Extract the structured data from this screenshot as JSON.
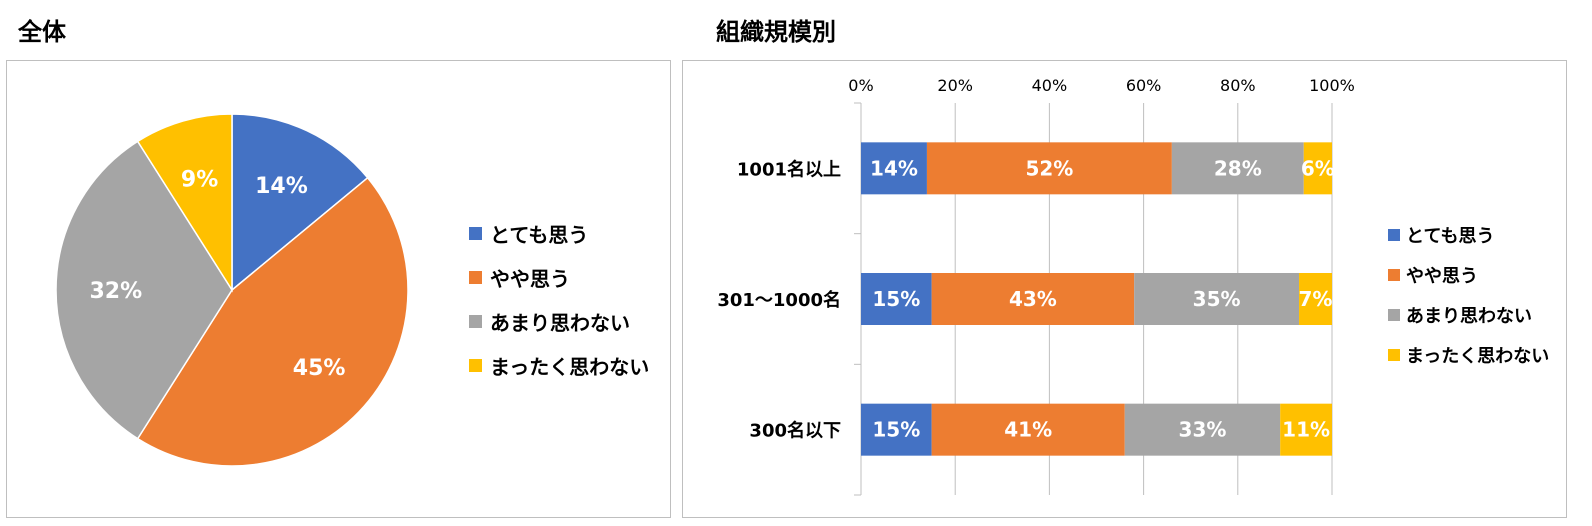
{
  "titles": {
    "left": "全体",
    "right": "組織規模別"
  },
  "colors": {
    "とても思う": "#4472C4",
    "やや思う": "#ED7D31",
    "あまり思わない": "#A5A5A5",
    "まったく思わない": "#FFC000"
  },
  "legend": [
    "とても思う",
    "やや思う",
    "あまり思わない",
    "まったく思わない"
  ],
  "chart_data": [
    {
      "type": "pie",
      "title": "全体",
      "labels": [
        "とても思う",
        "やや思う",
        "あまり思わない",
        "まったく思わない"
      ],
      "values": [
        14,
        45,
        32,
        9
      ],
      "value_labels": [
        "14%",
        "45%",
        "32%",
        "9%"
      ]
    },
    {
      "type": "bar",
      "orientation": "horizontal",
      "stacked": "100%",
      "title": "組織規模別",
      "categories": [
        "1001名以上",
        "301～1000名",
        "300名以下"
      ],
      "series": [
        {
          "name": "とても思う",
          "values": [
            14,
            15,
            15
          ],
          "labels": [
            "14%",
            "15%",
            "15%"
          ]
        },
        {
          "name": "やや思う",
          "values": [
            52,
            43,
            41
          ],
          "labels": [
            "52%",
            "43%",
            "41%"
          ]
        },
        {
          "name": "あまり思わない",
          "values": [
            28,
            35,
            33
          ],
          "labels": [
            "28%",
            "35%",
            "33%"
          ]
        },
        {
          "name": "まったく思わない",
          "values": [
            6,
            7,
            11
          ],
          "labels": [
            "6%",
            "7%",
            "11%"
          ]
        }
      ],
      "xlim": [
        0,
        100
      ],
      "xticks": [
        "0%",
        "20%",
        "40%",
        "60%",
        "80%",
        "100%"
      ],
      "axis_position": "top",
      "grid": true,
      "legend_position": "right"
    }
  ]
}
